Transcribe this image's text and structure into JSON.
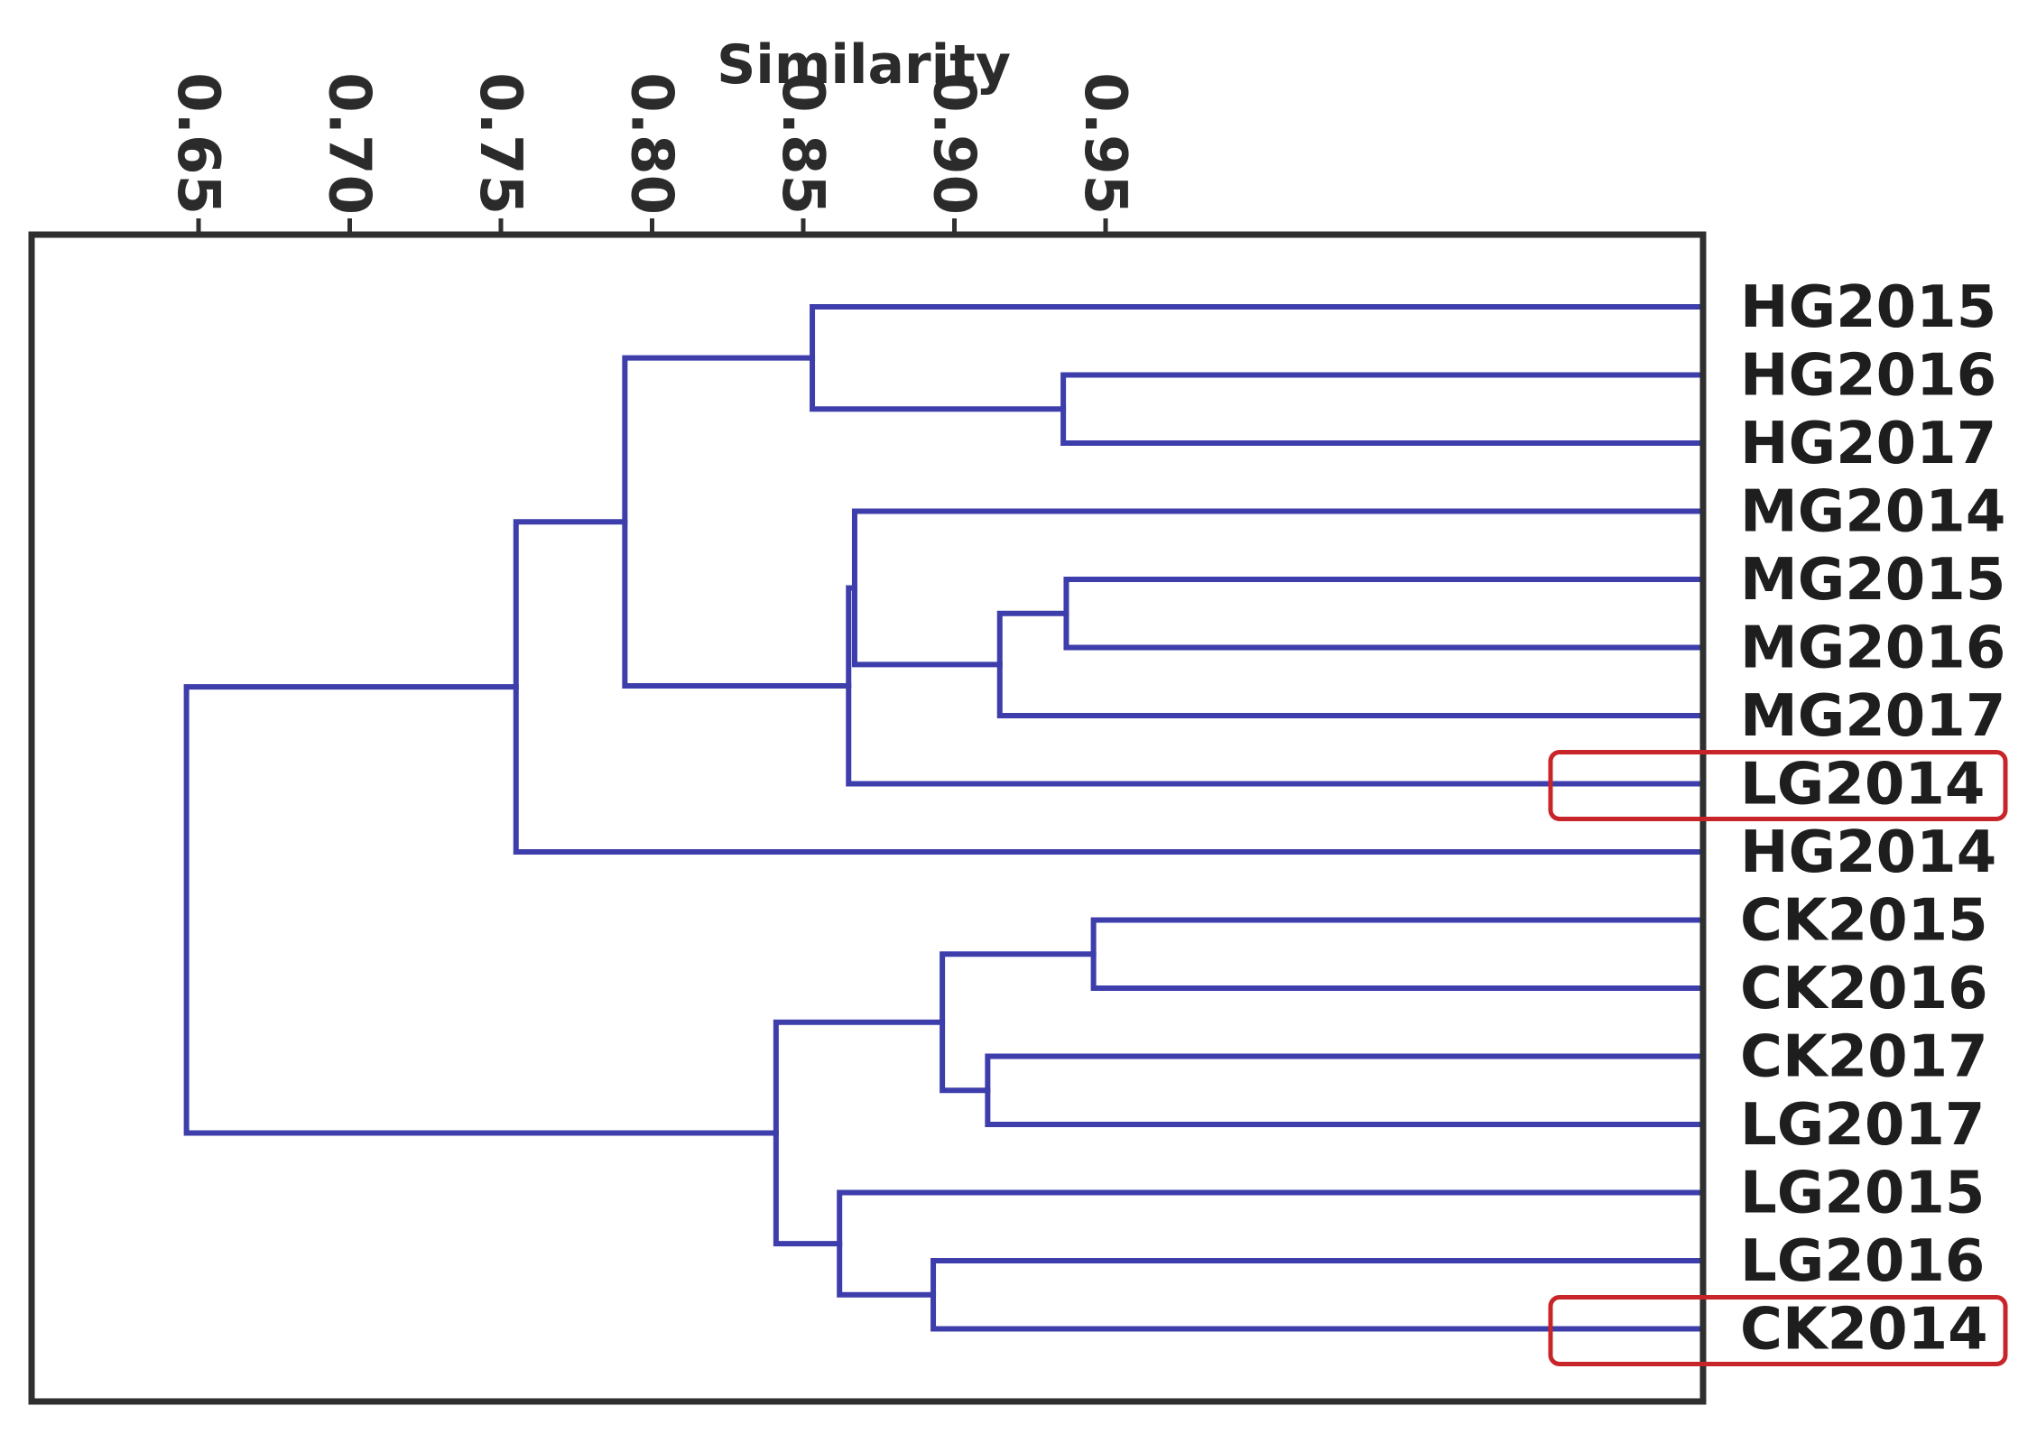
{
  "chart_data": {
    "type": "dendrogram",
    "xlabel": "Similarity",
    "xlim": [
      0.61,
      1.0
    ],
    "xticks": [
      "0.65",
      "0.70",
      "0.75",
      "0.80",
      "0.85",
      "0.90",
      "0.95"
    ],
    "leaves": [
      "HG2015",
      "HG2016",
      "HG2017",
      "MG2014",
      "MG2015",
      "MG2016",
      "MG2017",
      "LG2014",
      "HG2014",
      "CK2015",
      "CK2016",
      "CK2017",
      "LG2017",
      "LG2015",
      "LG2016",
      "CK2014"
    ],
    "highlighted_leaves": [
      "LG2014",
      "CK2014"
    ],
    "merges": [
      {
        "children": [
          "HG2016",
          "HG2017"
        ],
        "similarity": 0.936
      },
      {
        "children": [
          "MG2015",
          "MG2016"
        ],
        "similarity": 0.937
      },
      {
        "children": [
          "CK2015",
          "CK2016"
        ],
        "similarity": 0.946
      },
      {
        "children": [
          "CK2017",
          "LG2017"
        ],
        "similarity": 0.911
      },
      {
        "children": [
          "LG2016",
          "CK2014"
        ],
        "similarity": 0.893
      },
      {
        "children": [
          "MG2015+MG2016",
          "MG2017"
        ],
        "similarity": 0.915
      },
      {
        "children": [
          "MG2014",
          "MG2015+MG2016+MG2017"
        ],
        "similarity": 0.867
      },
      {
        "children": [
          "MG2014..MG2017",
          "LG2014"
        ],
        "similarity": 0.865
      },
      {
        "children": [
          "HG2015",
          "HG2016+HG2017"
        ],
        "similarity": 0.853
      },
      {
        "children": [
          "HG2015..HG2017",
          "MG2014..LG2014"
        ],
        "similarity": 0.791
      },
      {
        "children": [
          "HG2015..LG2014",
          "HG2014"
        ],
        "similarity": 0.755
      },
      {
        "children": [
          "CK2015+CK2016",
          "CK2017+LG2017"
        ],
        "similarity": 0.896
      },
      {
        "children": [
          "LG2015",
          "LG2016+CK2014"
        ],
        "similarity": 0.862
      },
      {
        "children": [
          "CK2015..LG2017",
          "LG2015..CK2014"
        ],
        "similarity": 0.841
      },
      {
        "children": [
          "HG2015..HG2014",
          "CK2015..CK2014"
        ],
        "similarity": 0.646
      }
    ],
    "colors": {
      "branch": "#3d3dab",
      "frame": "#2f2f2f",
      "highlight": "#c8252a"
    }
  }
}
